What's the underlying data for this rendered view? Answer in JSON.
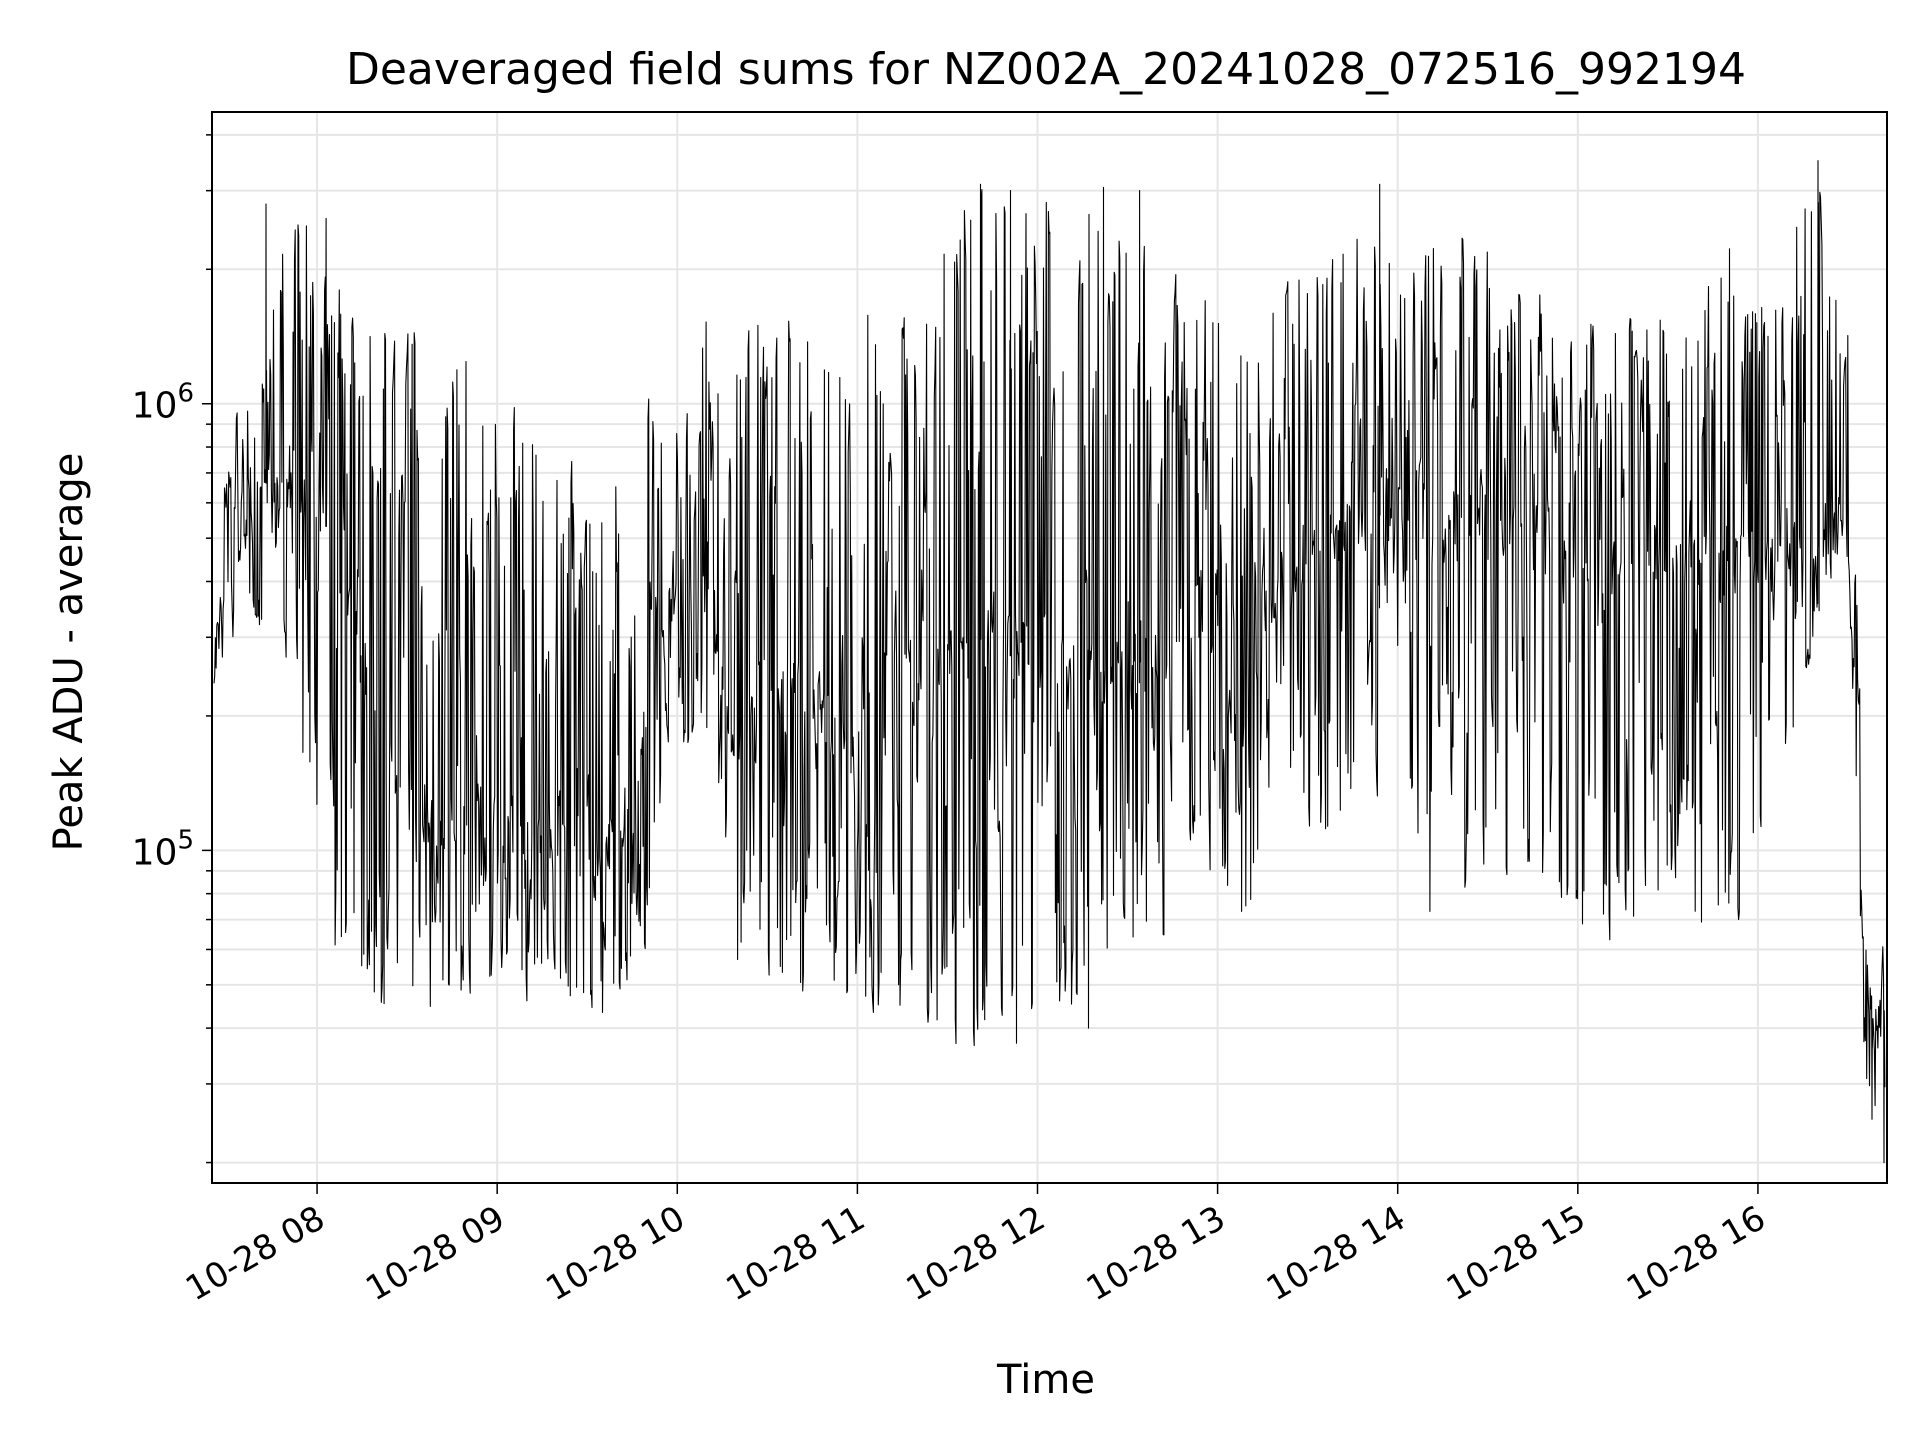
{
  "chart_data": {
    "type": "line",
    "title": "Deaveraged field sums for NZ002A_20241028_072516_992194",
    "xlabel": "Time",
    "ylabel": "Peak ADU - average",
    "yscale": "log",
    "xlim": [
      "2024-10-28 07:25",
      "2024-10-28 16:43"
    ],
    "ylim": [
      18000,
      4500000
    ],
    "x_ticks": [
      {
        "label": "10-28 08",
        "value": "2024-10-28 08:00"
      },
      {
        "label": "10-28 09",
        "value": "2024-10-28 09:00"
      },
      {
        "label": "10-28 10",
        "value": "2024-10-28 10:00"
      },
      {
        "label": "10-28 11",
        "value": "2024-10-28 11:00"
      },
      {
        "label": "10-28 12",
        "value": "2024-10-28 12:00"
      },
      {
        "label": "10-28 13",
        "value": "2024-10-28 13:00"
      },
      {
        "label": "10-28 14",
        "value": "2024-10-28 14:00"
      },
      {
        "label": "10-28 15",
        "value": "2024-10-28 15:00"
      },
      {
        "label": "10-28 16",
        "value": "2024-10-28 16:00"
      }
    ],
    "y_ticks": [
      {
        "base": "10",
        "exp": "5",
        "value": 100000
      },
      {
        "base": "10",
        "exp": "6",
        "value": 1000000
      }
    ],
    "grid": true,
    "line_color": "#000000",
    "series": [
      {
        "x": [
          "2024-10-28 07:25",
          "2024-10-28 07:30",
          "2024-10-28 07:40",
          "2024-10-28 07:50",
          "2024-10-28 08:00",
          "2024-10-28 08:10",
          "2024-10-28 08:20",
          "2024-10-28 08:30",
          "2024-10-28 08:40",
          "2024-10-28 08:50",
          "2024-10-28 09:00",
          "2024-10-28 09:10",
          "2024-10-28 09:20",
          "2024-10-28 09:30",
          "2024-10-28 09:40",
          "2024-10-28 09:50",
          "2024-10-28 10:00",
          "2024-10-28 10:10",
          "2024-10-28 10:20",
          "2024-10-28 10:30",
          "2024-10-28 10:40",
          "2024-10-28 10:50",
          "2024-10-28 11:00",
          "2024-10-28 11:10",
          "2024-10-28 11:20",
          "2024-10-28 11:30",
          "2024-10-28 11:40",
          "2024-10-28 11:50",
          "2024-10-28 12:00",
          "2024-10-28 12:10",
          "2024-10-28 12:20",
          "2024-10-28 12:30",
          "2024-10-28 12:40",
          "2024-10-28 12:50",
          "2024-10-28 13:00",
          "2024-10-28 13:10",
          "2024-10-28 13:20",
          "2024-10-28 13:30",
          "2024-10-28 13:40",
          "2024-10-28 13:50",
          "2024-10-28 14:00",
          "2024-10-28 14:10",
          "2024-10-28 14:20",
          "2024-10-28 14:30",
          "2024-10-28 14:40",
          "2024-10-28 14:50",
          "2024-10-28 15:00",
          "2024-10-28 15:10",
          "2024-10-28 15:20",
          "2024-10-28 15:30",
          "2024-10-28 15:40",
          "2024-10-28 15:50",
          "2024-10-28 16:00",
          "2024-10-28 16:10",
          "2024-10-28 16:20",
          "2024-10-28 16:25",
          "2024-10-28 16:30",
          "2024-10-28 16:33",
          "2024-10-28 16:36",
          "2024-10-28 16:40",
          "2024-10-28 16:43"
        ],
        "y": [
          220000,
          600000,
          650000,
          700000,
          600000,
          400000,
          180000,
          130000,
          120000,
          115000,
          120000,
          100000,
          115000,
          95000,
          110000,
          200000,
          420000,
          450000,
          180000,
          250000,
          220000,
          200000,
          160000,
          330000,
          230000,
          260000,
          300000,
          270000,
          300000,
          240000,
          250000,
          260000,
          270000,
          330000,
          400000,
          370000,
          390000,
          430000,
          490000,
          540000,
          600000,
          640000,
          520000,
          590000,
          510000,
          480000,
          460000,
          440000,
          460000,
          470000,
          420000,
          450000,
          440000,
          450000,
          480000,
          560000,
          600000,
          120000,
          40000,
          44000,
          42000
        ],
        "y_low": [
          220000,
          380000,
          330000,
          320000,
          80000,
          50000,
          46000,
          43000,
          45000,
          47000,
          48000,
          46000,
          47000,
          42000,
          42000,
          55000,
          170000,
          180000,
          55000,
          56000,
          48000,
          45000,
          48000,
          42000,
          40000,
          42000,
          37000,
          45000,
          42000,
          41000,
          55000,
          60000,
          60000,
          90000,
          80000,
          70000,
          160000,
          100000,
          110000,
          140000,
          220000,
          70000,
          75000,
          85000,
          80000,
          90000,
          58000,
          65000,
          70000,
          72000,
          70000,
          60000,
          95000,
          160000,
          300000,
          420000,
          400000,
          120000,
          25000,
          24000,
          20000
        ],
        "y_high": [
          220000,
          900000,
          1100000,
          2800000,
          2600000,
          1600000,
          1500000,
          1600000,
          1600000,
          1600000,
          950000,
          950000,
          800000,
          700000,
          650000,
          1000000,
          900000,
          1600000,
          1700000,
          1700000,
          1600000,
          1500000,
          1700000,
          1500000,
          1600000,
          3100000,
          3000000,
          3000000,
          2900000,
          3000000,
          3000000,
          2200000,
          1800000,
          2100000,
          1600000,
          1400000,
          1700000,
          2000000,
          2200000,
          3000000,
          1800000,
          2200000,
          2500000,
          2200000,
          2000000,
          1800000,
          1600000,
          1500000,
          1600000,
          1700000,
          1600000,
          2400000,
          1700000,
          2600000,
          3500000,
          1900000,
          1500000,
          500000,
          60000,
          60000,
          50000
        ],
        "spikes": [
          {
            "x": "2024-10-28 07:43",
            "y": 2800000
          },
          {
            "x": "2024-10-28 08:03",
            "y": 2600000
          },
          {
            "x": "2024-10-28 11:41",
            "y": 3100000
          },
          {
            "x": "2024-10-28 11:51",
            "y": 3000000
          },
          {
            "x": "2024-10-28 12:22",
            "y": 3050000
          },
          {
            "x": "2024-10-28 12:34",
            "y": 3000000
          },
          {
            "x": "2024-10-28 13:54",
            "y": 3100000
          },
          {
            "x": "2024-10-28 16:20",
            "y": 3500000
          },
          {
            "x": "2024-10-28 11:53",
            "y": 37000
          },
          {
            "x": "2024-10-28 12:17",
            "y": 40000
          },
          {
            "x": "2024-10-28 16:38",
            "y": 25000
          },
          {
            "x": "2024-10-28 16:42",
            "y": 20000
          }
        ]
      }
    ]
  }
}
